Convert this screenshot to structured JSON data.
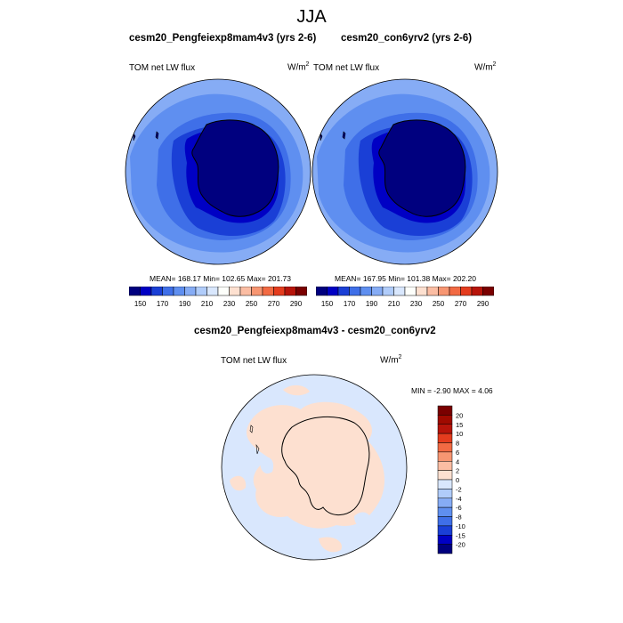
{
  "main_title": "JJA",
  "panels": [
    {
      "title": "cesm20_Pengfeiexp8mam4v3 (yrs 2-6)",
      "variable": "TOM net LW flux",
      "units_base": "W/m",
      "units_exp": "2",
      "stats": "MEAN= 168.17  Min= 102.65  Max= 201.73"
    },
    {
      "title": "cesm20_con6yrv2 (yrs 2-6)",
      "variable": "TOM net LW flux",
      "units_base": "W/m",
      "units_exp": "2",
      "stats": "MEAN= 167.95  Min= 101.38  Max= 202.20"
    },
    {
      "title": "cesm20_Pengfeiexp8mam4v3 - cesm20_con6yrv2",
      "variable": "TOM net LW flux",
      "units_base": "W/m",
      "units_exp": "2",
      "stats": "MIN =  -2.90 MAX =   4.06"
    }
  ],
  "chart_data": [
    {
      "type": "heatmap",
      "projection": "south polar stereographic",
      "title": "cesm20_Pengfeiexp8mam4v3 (yrs 2-6)",
      "variable": "TOM net LW flux",
      "units": "W/m2",
      "mean": 168.17,
      "min": 102.65,
      "max": 201.73,
      "colorbar": {
        "orientation": "horizontal",
        "levels": [
          150,
          160,
          170,
          180,
          190,
          200,
          210,
          220,
          230,
          240,
          250,
          260,
          270,
          280,
          290
        ],
        "tick_labels": [
          "150",
          "170",
          "190",
          "210",
          "230",
          "250",
          "270",
          "290"
        ],
        "colors": [
          "#00007f",
          "#0000c4",
          "#1a3fd6",
          "#3f6fe8",
          "#5f8ff0",
          "#86acf5",
          "#b0ccfa",
          "#d9e7fd",
          "#fdfffb",
          "#fde0d0",
          "#fbbda3",
          "#f79672",
          "#f26a43",
          "#e43c1e",
          "#b7140a",
          "#7a0000"
        ]
      }
    },
    {
      "type": "heatmap",
      "projection": "south polar stereographic",
      "title": "cesm20_con6yrv2 (yrs 2-6)",
      "variable": "TOM net LW flux",
      "units": "W/m2",
      "mean": 167.95,
      "min": 101.38,
      "max": 202.2,
      "colorbar": {
        "orientation": "horizontal",
        "levels": [
          150,
          160,
          170,
          180,
          190,
          200,
          210,
          220,
          230,
          240,
          250,
          260,
          270,
          280,
          290
        ],
        "tick_labels": [
          "150",
          "170",
          "190",
          "210",
          "230",
          "250",
          "270",
          "290"
        ],
        "colors": [
          "#00007f",
          "#0000c4",
          "#1a3fd6",
          "#3f6fe8",
          "#5f8ff0",
          "#86acf5",
          "#b0ccfa",
          "#d9e7fd",
          "#fdfffb",
          "#fde0d0",
          "#fbbda3",
          "#f79672",
          "#f26a43",
          "#e43c1e",
          "#b7140a",
          "#7a0000"
        ]
      }
    },
    {
      "type": "heatmap",
      "projection": "south polar stereographic",
      "title": "cesm20_Pengfeiexp8mam4v3 - cesm20_con6yrv2",
      "variable": "TOM net LW flux",
      "units": "W/m2",
      "min": -2.9,
      "max": 4.06,
      "colorbar": {
        "orientation": "vertical",
        "levels": [
          -20,
          -15,
          -10,
          -8,
          -6,
          -4,
          -2,
          0,
          2,
          4,
          6,
          8,
          10,
          15,
          20
        ],
        "tick_labels": [
          "20",
          "15",
          "10",
          "8",
          "6",
          "4",
          "2",
          "0",
          "-2",
          "-4",
          "-6",
          "-8",
          "-10",
          "-15",
          "-20"
        ],
        "colors": [
          "#00007f",
          "#0000c4",
          "#1a3fd6",
          "#3f6fe8",
          "#5f8ff0",
          "#86acf5",
          "#b0ccfa",
          "#d9e7fd",
          "#fde0d0",
          "#fbbda3",
          "#f79672",
          "#f26a43",
          "#e43c1e",
          "#b7140a",
          "#a00a00",
          "#7a0000"
        ]
      }
    }
  ]
}
